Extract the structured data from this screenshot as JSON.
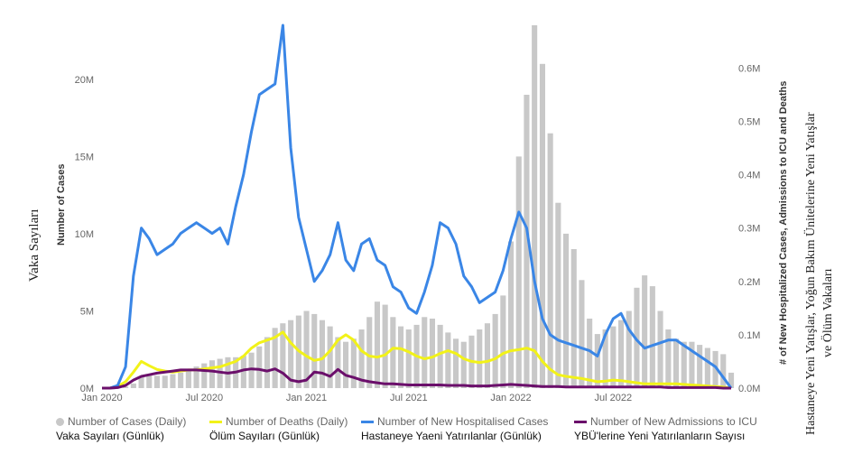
{
  "chart_data": {
    "type": "bar+line",
    "left_axis": {
      "title_en": "Number of Cases",
      "title_tr": "Vaka Sayıları",
      "ticks": [
        "0M",
        "5M",
        "10M",
        "15M",
        "20M"
      ],
      "tick_values": [
        0,
        5,
        10,
        15,
        20
      ],
      "range": [
        0,
        23.5
      ]
    },
    "right_axis": {
      "title_en": "# of New Hospitalized Cases, Admissions to ICU and Deaths",
      "title_tr_line1": "Hastaneye Yeni Yatışlar, Yoğun Bakım Ünitelerine Yeni Yatışlar",
      "title_tr_line2": "ve Ölüm Vakaları",
      "ticks": [
        "0.0M",
        "0.1M",
        "0.2M",
        "0.3M",
        "0.4M",
        "0.5M",
        "0.6M"
      ],
      "tick_values": [
        0,
        0.1,
        0.2,
        0.3,
        0.4,
        0.5,
        0.6
      ],
      "range": [
        0,
        0.68
      ]
    },
    "x_axis": {
      "ticks": [
        "Jan 2020",
        "Jul 2020",
        "Jan 2021",
        "Jul 2021",
        "Jan 2022",
        "Jul 2022"
      ],
      "tick_index": [
        0,
        13,
        26,
        39,
        52,
        65
      ],
      "range_index": [
        0,
        80
      ]
    },
    "cases_daily": [
      0.0,
      0.0,
      0.0,
      0.1,
      0.3,
      0.7,
      0.9,
      0.8,
      0.8,
      0.9,
      1.0,
      1.2,
      1.4,
      1.6,
      1.8,
      1.9,
      2.0,
      2.0,
      2.1,
      2.3,
      2.7,
      3.3,
      3.9,
      4.2,
      4.4,
      4.7,
      5.0,
      4.8,
      4.4,
      4.0,
      3.3,
      3.0,
      3.2,
      3.8,
      4.6,
      5.6,
      5.4,
      4.6,
      4.0,
      3.8,
      4.1,
      4.6,
      4.5,
      4.1,
      3.6,
      3.2,
      3.0,
      3.4,
      3.8,
      4.2,
      4.8,
      6.0,
      9.5,
      15.0,
      19.0,
      23.5,
      21.0,
      16.5,
      12.0,
      10.0,
      9.0,
      7.0,
      4.5,
      3.5,
      3.8,
      4.0,
      4.4,
      5.0,
      6.5,
      7.3,
      6.6,
      5.0,
      3.8,
      3.2,
      3.0,
      3.0,
      2.8,
      2.6,
      2.4,
      2.2,
      1.0
    ],
    "hospitalised": [
      0.0,
      0.0,
      0.005,
      0.04,
      0.21,
      0.3,
      0.28,
      0.25,
      0.26,
      0.27,
      0.29,
      0.3,
      0.31,
      0.3,
      0.29,
      0.3,
      0.27,
      0.34,
      0.4,
      0.48,
      0.55,
      0.56,
      0.57,
      0.68,
      0.45,
      0.32,
      0.26,
      0.2,
      0.22,
      0.25,
      0.31,
      0.24,
      0.22,
      0.27,
      0.28,
      0.24,
      0.23,
      0.19,
      0.18,
      0.15,
      0.14,
      0.18,
      0.23,
      0.31,
      0.3,
      0.27,
      0.21,
      0.19,
      0.16,
      0.17,
      0.18,
      0.22,
      0.28,
      0.33,
      0.3,
      0.2,
      0.13,
      0.1,
      0.09,
      0.085,
      0.08,
      0.075,
      0.07,
      0.06,
      0.1,
      0.13,
      0.14,
      0.11,
      0.09,
      0.075,
      0.08,
      0.085,
      0.09,
      0.09,
      0.08,
      0.07,
      0.06,
      0.05,
      0.04,
      0.02,
      0.0
    ],
    "deaths_daily": [
      0.0,
      0.0,
      0.003,
      0.012,
      0.03,
      0.05,
      0.042,
      0.035,
      0.032,
      0.03,
      0.032,
      0.034,
      0.034,
      0.036,
      0.038,
      0.04,
      0.045,
      0.05,
      0.06,
      0.075,
      0.085,
      0.09,
      0.095,
      0.105,
      0.085,
      0.07,
      0.06,
      0.052,
      0.055,
      0.07,
      0.09,
      0.1,
      0.09,
      0.07,
      0.06,
      0.058,
      0.062,
      0.075,
      0.074,
      0.068,
      0.06,
      0.055,
      0.058,
      0.065,
      0.07,
      0.065,
      0.055,
      0.05,
      0.048,
      0.05,
      0.055,
      0.065,
      0.07,
      0.072,
      0.075,
      0.07,
      0.05,
      0.035,
      0.025,
      0.022,
      0.02,
      0.018,
      0.015,
      0.012,
      0.013,
      0.015,
      0.014,
      0.012,
      0.01,
      0.008,
      0.008,
      0.008,
      0.008,
      0.008,
      0.007,
      0.006,
      0.005,
      0.004,
      0.003,
      0.002,
      0.0
    ],
    "icu_admissions": [
      0.0,
      0.0,
      0.001,
      0.005,
      0.015,
      0.022,
      0.025,
      0.028,
      0.03,
      0.032,
      0.034,
      0.034,
      0.034,
      0.033,
      0.032,
      0.03,
      0.028,
      0.03,
      0.034,
      0.036,
      0.035,
      0.032,
      0.036,
      0.028,
      0.015,
      0.012,
      0.015,
      0.03,
      0.028,
      0.022,
      0.035,
      0.024,
      0.02,
      0.015,
      0.012,
      0.01,
      0.008,
      0.008,
      0.007,
      0.006,
      0.006,
      0.006,
      0.006,
      0.006,
      0.005,
      0.005,
      0.005,
      0.004,
      0.004,
      0.004,
      0.005,
      0.006,
      0.007,
      0.006,
      0.005,
      0.004,
      0.003,
      0.003,
      0.003,
      0.002,
      0.002,
      0.002,
      0.002,
      0.002,
      0.002,
      0.002,
      0.002,
      0.002,
      0.002,
      0.002,
      0.002,
      0.002,
      0.001,
      0.001,
      0.001,
      0.001,
      0.001,
      0.001,
      0.001,
      0.0,
      0.0
    ],
    "legend": [
      {
        "en": "Number of Cases (Daily)",
        "tr": "Vaka Sayıları (Günlük)",
        "color": "#c8c8c8",
        "kind": "bar"
      },
      {
        "en": "Number of Deaths (Daily)",
        "tr": "Ölüm Sayıları (Günlük)",
        "color": "#f2f219",
        "kind": "line"
      },
      {
        "en": "Number of New Hospitalised Cases",
        "tr": "Hastaneye Yaeni Yatırılanlar (Günlük)",
        "color": "#3a86e6",
        "kind": "line"
      },
      {
        "en": "Number of New Admissions to ICU",
        "tr": "YBÜ'lerine Yeni Yatırılanların Sayısı",
        "color": "#6b0f6b",
        "kind": "line"
      }
    ]
  }
}
